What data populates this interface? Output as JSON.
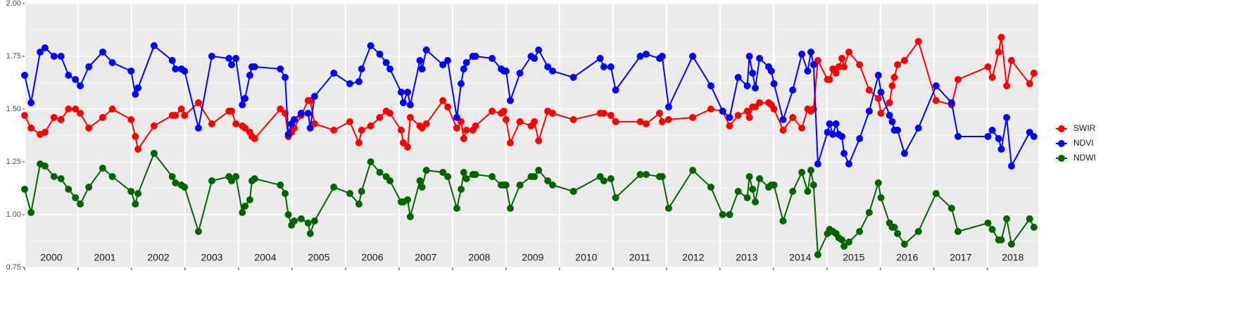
{
  "chart_data": {
    "type": "line",
    "x": [
      2000.0,
      2000.12,
      2000.29,
      2000.38,
      2000.55,
      2000.68,
      2000.82,
      2000.95,
      2001.04,
      2001.2,
      2001.46,
      2001.64,
      2001.99,
      2002.07,
      2002.12,
      2002.42,
      2002.76,
      2002.82,
      2002.93,
      2002.99,
      2003.25,
      2003.5,
      2003.82,
      2003.87,
      2003.95,
      2004.07,
      2004.12,
      2004.21,
      2004.25,
      2004.3,
      2004.78,
      2004.87,
      2004.93,
      2004.99,
      2005.04,
      2005.17,
      2005.3,
      2005.34,
      2005.42,
      2005.78,
      2006.08,
      2006.25,
      2006.3,
      2006.47,
      2006.64,
      2006.76,
      2006.83,
      2007.04,
      2007.08,
      2007.16,
      2007.21,
      2007.39,
      2007.43,
      2007.51,
      2007.82,
      2007.91,
      2008.08,
      2008.16,
      2008.21,
      2008.26,
      2008.38,
      2008.43,
      2008.74,
      2008.91,
      2008.96,
      2009.0,
      2009.08,
      2009.26,
      2009.47,
      2009.53,
      2009.61,
      2009.78,
      2009.87,
      2010.26,
      2010.76,
      2010.83,
      2010.96,
      2011.05,
      2011.51,
      2011.62,
      2011.87,
      2011.92,
      2012.04,
      2012.49,
      2012.83,
      2013.05,
      2013.18,
      2013.34,
      2013.51,
      2013.55,
      2013.61,
      2013.66,
      2013.74,
      2013.91,
      2013.96,
      2014.01,
      2014.18,
      2014.36,
      2014.53,
      2014.64,
      2014.7,
      2014.75,
      2014.83,
      2015.01,
      2015.05,
      2015.11,
      2015.17,
      2015.22,
      2015.28,
      2015.32,
      2015.41,
      2015.61,
      2015.79,
      2015.96,
      2016.01,
      2016.17,
      2016.22,
      2016.26,
      2016.32,
      2016.45,
      2016.71,
      2017.04,
      2017.33,
      2017.45,
      2018.01,
      2018.09,
      2018.21,
      2018.26,
      2018.36,
      2018.45,
      2018.79,
      2018.87
    ],
    "series": [
      {
        "name": "SWIR",
        "color": "#ff0000",
        "values": [
          1.47,
          1.41,
          1.38,
          1.39,
          1.46,
          1.45,
          1.5,
          1.5,
          1.48,
          1.41,
          1.46,
          1.5,
          1.45,
          1.37,
          1.31,
          1.42,
          1.47,
          1.47,
          1.5,
          1.47,
          1.53,
          1.43,
          1.49,
          1.49,
          1.43,
          1.42,
          1.41,
          1.39,
          1.37,
          1.36,
          1.5,
          1.48,
          1.37,
          1.39,
          1.41,
          1.47,
          1.54,
          1.54,
          1.43,
          1.4,
          1.44,
          1.34,
          1.4,
          1.42,
          1.46,
          1.49,
          1.48,
          1.4,
          1.34,
          1.32,
          1.46,
          1.42,
          1.41,
          1.43,
          1.54,
          1.51,
          1.41,
          1.44,
          1.36,
          1.4,
          1.4,
          1.42,
          1.49,
          1.48,
          1.49,
          1.45,
          1.34,
          1.44,
          1.42,
          1.44,
          1.35,
          1.49,
          1.48,
          1.45,
          1.48,
          1.48,
          1.47,
          1.44,
          1.44,
          1.43,
          1.48,
          1.44,
          1.45,
          1.46,
          1.5,
          1.49,
          1.42,
          1.47,
          1.49,
          1.46,
          1.51,
          1.51,
          1.53,
          1.53,
          1.52,
          1.5,
          1.4,
          1.46,
          1.41,
          1.5,
          1.49,
          1.5,
          1.73,
          1.64,
          1.64,
          1.69,
          1.67,
          1.7,
          1.74,
          1.7,
          1.77,
          1.71,
          1.59,
          1.55,
          1.48,
          1.53,
          1.61,
          1.65,
          1.71,
          1.73,
          1.82,
          1.54,
          1.52,
          1.64,
          1.7,
          1.65,
          1.77,
          1.84,
          1.61,
          1.73,
          1.62,
          1.67
        ]
      },
      {
        "name": "NDVI",
        "color": "#0000ff",
        "values": [
          1.66,
          1.53,
          1.77,
          1.79,
          1.75,
          1.75,
          1.66,
          1.64,
          1.61,
          1.7,
          1.77,
          1.72,
          1.68,
          1.57,
          1.6,
          1.8,
          1.73,
          1.69,
          1.69,
          1.68,
          1.41,
          1.75,
          1.74,
          1.71,
          1.74,
          1.52,
          1.55,
          1.66,
          1.7,
          1.7,
          1.69,
          1.65,
          1.38,
          1.43,
          1.45,
          1.48,
          1.48,
          1.41,
          1.56,
          1.67,
          1.62,
          1.63,
          1.69,
          1.8,
          1.76,
          1.72,
          1.69,
          1.58,
          1.53,
          1.58,
          1.52,
          1.73,
          1.69,
          1.78,
          1.71,
          1.73,
          1.46,
          1.62,
          1.69,
          1.72,
          1.75,
          1.75,
          1.74,
          1.69,
          1.68,
          1.68,
          1.54,
          1.67,
          1.75,
          1.74,
          1.78,
          1.7,
          1.68,
          1.65,
          1.74,
          1.7,
          1.7,
          1.59,
          1.75,
          1.76,
          1.74,
          1.75,
          1.51,
          1.75,
          1.61,
          1.49,
          1.46,
          1.65,
          1.61,
          1.75,
          1.67,
          1.6,
          1.74,
          1.7,
          1.68,
          1.62,
          1.45,
          1.59,
          1.76,
          1.68,
          1.77,
          1.71,
          1.24,
          1.39,
          1.43,
          1.38,
          1.43,
          1.38,
          1.37,
          1.29,
          1.24,
          1.36,
          1.49,
          1.66,
          1.58,
          1.47,
          1.44,
          1.4,
          1.4,
          1.29,
          1.41,
          1.61,
          1.53,
          1.37,
          1.37,
          1.4,
          1.36,
          1.31,
          1.46,
          1.23,
          1.39,
          1.37
        ]
      },
      {
        "name": "NDWI",
        "color": "#006400",
        "values": [
          1.12,
          1.01,
          1.24,
          1.23,
          1.18,
          1.17,
          1.12,
          1.08,
          1.05,
          1.13,
          1.22,
          1.18,
          1.11,
          1.05,
          1.1,
          1.29,
          1.18,
          1.15,
          1.14,
          1.13,
          0.92,
          1.16,
          1.18,
          1.16,
          1.18,
          1.01,
          1.04,
          1.07,
          1.16,
          1.17,
          1.14,
          1.1,
          1.0,
          0.95,
          0.97,
          0.98,
          0.96,
          0.91,
          0.97,
          1.13,
          1.1,
          1.05,
          1.11,
          1.25,
          1.2,
          1.18,
          1.16,
          1.06,
          1.06,
          1.07,
          0.99,
          1.16,
          1.13,
          1.21,
          1.2,
          1.18,
          1.03,
          1.12,
          1.2,
          1.17,
          1.19,
          1.19,
          1.18,
          1.14,
          1.14,
          1.14,
          1.03,
          1.14,
          1.18,
          1.18,
          1.21,
          1.16,
          1.14,
          1.11,
          1.18,
          1.16,
          1.17,
          1.08,
          1.19,
          1.19,
          1.18,
          1.18,
          1.03,
          1.21,
          1.13,
          1.0,
          1.0,
          1.11,
          1.08,
          1.18,
          1.12,
          1.06,
          1.17,
          1.13,
          1.14,
          1.14,
          0.97,
          1.11,
          1.2,
          1.11,
          1.21,
          1.14,
          0.81,
          0.91,
          0.93,
          0.92,
          0.91,
          0.89,
          0.88,
          0.85,
          0.87,
          0.92,
          1.01,
          1.15,
          1.08,
          0.96,
          0.94,
          0.94,
          0.91,
          0.86,
          0.92,
          1.1,
          1.03,
          0.92,
          0.96,
          0.93,
          0.88,
          0.88,
          0.98,
          0.86,
          0.98,
          0.94
        ]
      }
    ],
    "xlim": [
      2000,
      2018.95
    ],
    "xticks": [
      2000,
      2001,
      2002,
      2003,
      2004,
      2005,
      2006,
      2007,
      2008,
      2009,
      2010,
      2011,
      2012,
      2013,
      2014,
      2015,
      2016,
      2017,
      2018
    ],
    "year_labels": [
      "2000",
      "2001",
      "2002",
      "2003",
      "2004",
      "2005",
      "2006",
      "2007",
      "2008",
      "2009",
      "2010",
      "2011",
      "2012",
      "2013",
      "2014",
      "2015",
      "2016",
      "2017",
      "2018"
    ],
    "ylim": [
      0.75,
      2.0
    ],
    "yticks": [
      0.75,
      {
        "value": 1.0,
        "label": "1.00"
      },
      1.25,
      {
        "value": 1.5,
        "label": "1.50"
      },
      1.75,
      {
        "value": 2.0,
        "label": "2.00"
      }
    ],
    "grid": true,
    "legend_position": "right"
  }
}
